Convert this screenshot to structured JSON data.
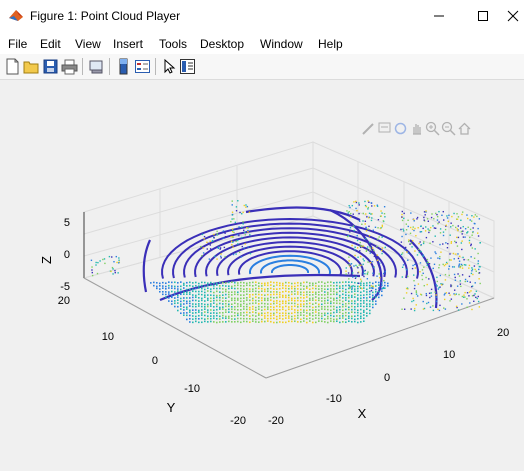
{
  "window": {
    "title": "Figure 1: Point Cloud Player",
    "controls": [
      "minimize",
      "maximize",
      "close"
    ]
  },
  "menu": [
    "File",
    "Edit",
    "View",
    "Insert",
    "Tools",
    "Desktop",
    "Window",
    "Help"
  ],
  "toolbar": {
    "icons": [
      "new-figure-icon",
      "open-file-icon",
      "save-icon",
      "print-icon",
      "link-plot-icon",
      "colorbar-icon",
      "legend-icon",
      "edit-plot-icon",
      "property-inspector-icon"
    ]
  },
  "axes_toolbar": {
    "icons": [
      "brush-icon",
      "data-tips-icon",
      "rotate-3d-icon",
      "pan-icon",
      "zoom-in-icon",
      "zoom-out-icon",
      "home-icon"
    ]
  },
  "plot": {
    "type": "3d-point-cloud",
    "xlabel": "X",
    "ylabel": "Y",
    "zlabel": "Z",
    "x_ticks": [
      "-20",
      "-10",
      "0",
      "10",
      "20"
    ],
    "y_ticks": [
      "20",
      "10",
      "0",
      "-10",
      "-20"
    ],
    "z_ticks": [
      "5",
      "0",
      "-5"
    ],
    "colormap": [
      "#3a2fb8",
      "#2a7fe0",
      "#22b8b0",
      "#7fd060",
      "#f0d020"
    ]
  }
}
